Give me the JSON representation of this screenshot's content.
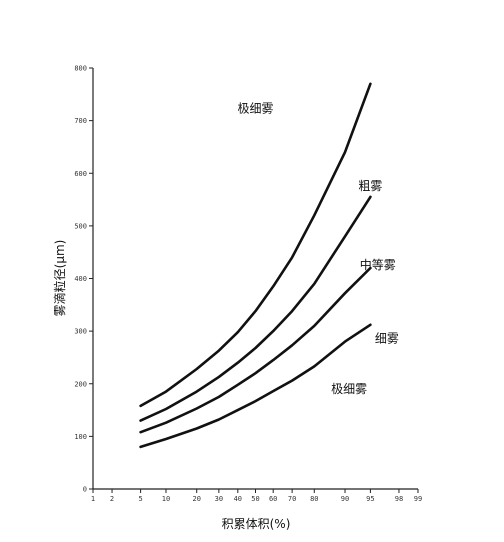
{
  "chart_data": {
    "type": "line",
    "xlabel": "积累体积(%)",
    "ylabel": "雾滴粒径(μm)",
    "x_scale": "probability",
    "x_ticks": [
      1,
      2,
      5,
      10,
      20,
      30,
      40,
      50,
      60,
      70,
      80,
      90,
      95,
      98,
      99
    ],
    "y_ticks": [
      0,
      100,
      200,
      300,
      400,
      500,
      600,
      700,
      800
    ],
    "ylim": [
      0,
      800
    ],
    "xlim": [
      1,
      99
    ],
    "grid": false,
    "series": [
      {
        "x": [
          5,
          10,
          20,
          30,
          40,
          50,
          60,
          70,
          80,
          90,
          95
        ],
        "y": [
          158,
          185,
          228,
          263,
          298,
          338,
          385,
          440,
          520,
          640,
          770
        ]
      },
      {
        "x": [
          5,
          10,
          20,
          30,
          40,
          50,
          60,
          70,
          80,
          90,
          95
        ],
        "y": [
          130,
          152,
          185,
          213,
          240,
          268,
          300,
          338,
          390,
          480,
          555
        ]
      },
      {
        "x": [
          5,
          10,
          20,
          30,
          40,
          50,
          60,
          70,
          80,
          90,
          95
        ],
        "y": [
          108,
          126,
          153,
          175,
          198,
          220,
          245,
          273,
          310,
          372,
          420
        ]
      },
      {
        "x": [
          5,
          10,
          20,
          30,
          40,
          50,
          60,
          70,
          80,
          90,
          95
        ],
        "y": [
          80,
          95,
          115,
          132,
          150,
          167,
          186,
          206,
          233,
          280,
          312
        ]
      }
    ],
    "annotations": [
      {
        "text": "极细雾",
        "x": 50,
        "y": 715
      },
      {
        "text": "粗雾",
        "x": 95,
        "y": 568
      },
      {
        "text": "中等雾",
        "x": 96,
        "y": 418
      },
      {
        "text": "细雾",
        "x": 97,
        "y": 278
      },
      {
        "text": "极细雾",
        "x": 91,
        "y": 182
      }
    ]
  }
}
